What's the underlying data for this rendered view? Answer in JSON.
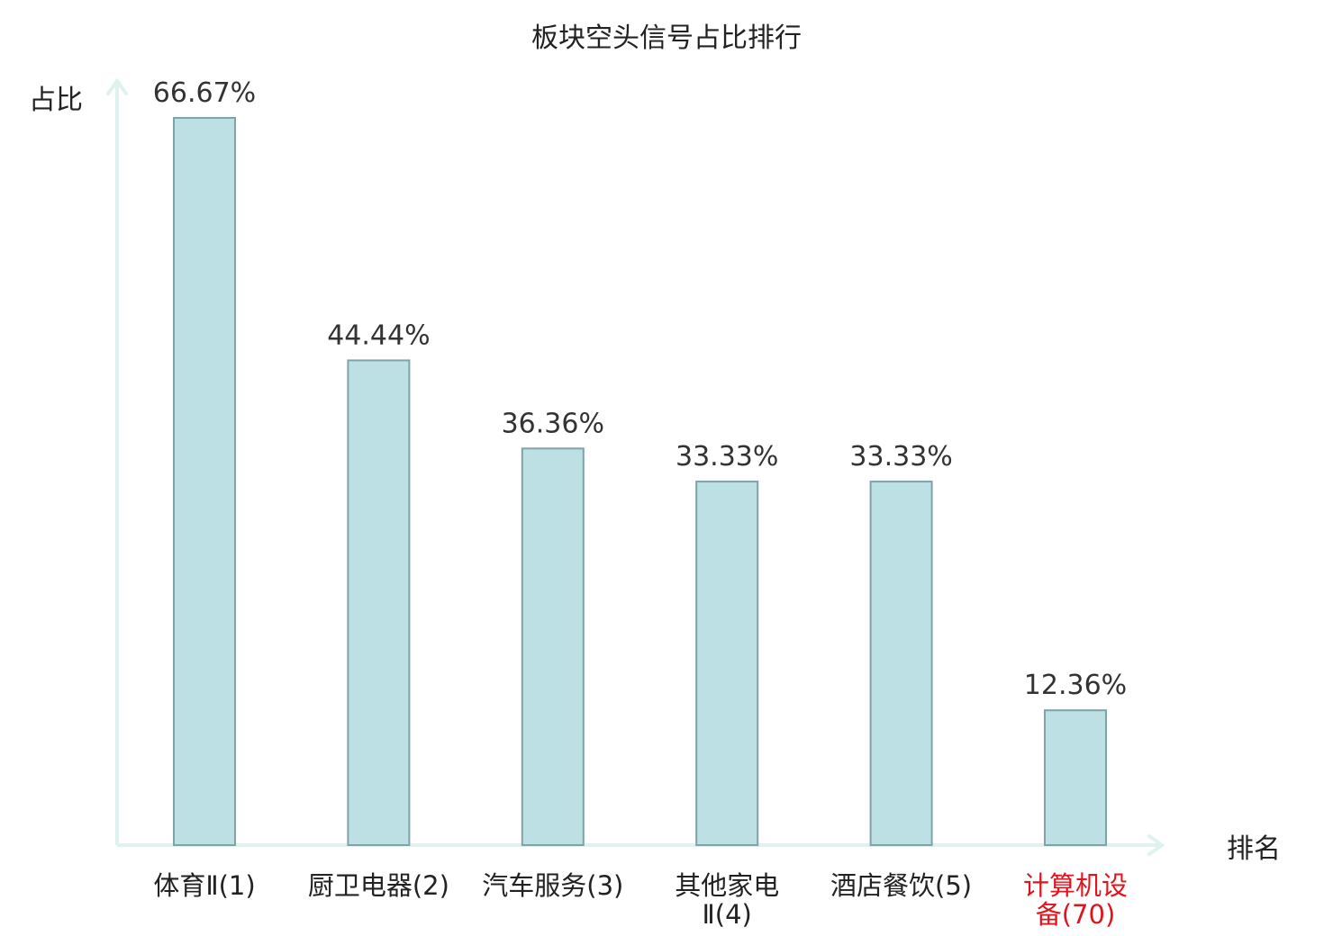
{
  "chart_data": {
    "type": "bar",
    "title": "板块空头信号占比排行",
    "ylabel": "占比",
    "xlabel": "排名",
    "categories": [
      [
        "体育Ⅱ(1)"
      ],
      [
        "厨卫电器(2)"
      ],
      [
        "汽车服务(3)"
      ],
      [
        "其他家电",
        "Ⅱ(4)"
      ],
      [
        "酒店餐饮(5)"
      ],
      [
        "计算机设",
        "备(70)"
      ]
    ],
    "values": [
      66.67,
      44.44,
      36.36,
      33.33,
      33.33,
      12.36
    ],
    "value_labels": [
      "66.67%",
      "44.44%",
      "36.36%",
      "33.33%",
      "33.33%",
      "12.36%"
    ],
    "highlight_index": 5,
    "ylim": [
      0,
      66.67
    ],
    "grid": false,
    "legend": "none",
    "colors": {
      "bar_fill": "#bce0e3",
      "bar_stroke": "#7fa3a6",
      "axis": "#dff2ef",
      "label": "#222222",
      "highlight": "#e0141e"
    }
  }
}
